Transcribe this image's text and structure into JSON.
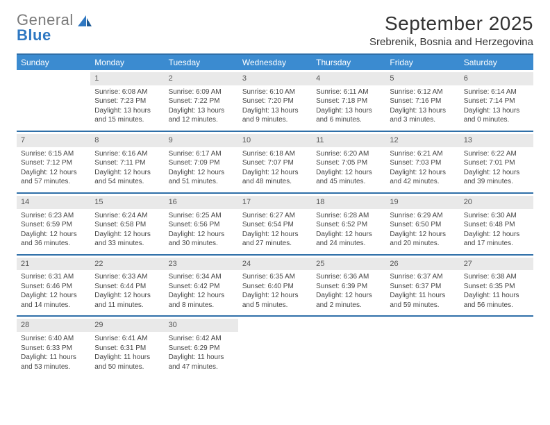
{
  "brand": {
    "word1": "General",
    "word2": "Blue"
  },
  "header": {
    "month": "September 2025",
    "location": "Srebrenik, Bosnia and Herzegovina"
  },
  "weekdays": [
    "Sunday",
    "Monday",
    "Tuesday",
    "Wednesday",
    "Thursday",
    "Friday",
    "Saturday"
  ],
  "colors": {
    "header_bg": "#3b8bd0",
    "header_text": "#ffffff",
    "rule": "#2f6fa8",
    "daynum_bg": "#e9e9e9",
    "body_text": "#444444",
    "logo_gray": "#7a7a7a",
    "logo_blue": "#2f78c2"
  },
  "weeks": [
    [
      null,
      {
        "n": "1",
        "sr": "Sunrise: 6:08 AM",
        "ss": "Sunset: 7:23 PM",
        "dl": "Daylight: 13 hours and 15 minutes."
      },
      {
        "n": "2",
        "sr": "Sunrise: 6:09 AM",
        "ss": "Sunset: 7:22 PM",
        "dl": "Daylight: 13 hours and 12 minutes."
      },
      {
        "n": "3",
        "sr": "Sunrise: 6:10 AM",
        "ss": "Sunset: 7:20 PM",
        "dl": "Daylight: 13 hours and 9 minutes."
      },
      {
        "n": "4",
        "sr": "Sunrise: 6:11 AM",
        "ss": "Sunset: 7:18 PM",
        "dl": "Daylight: 13 hours and 6 minutes."
      },
      {
        "n": "5",
        "sr": "Sunrise: 6:12 AM",
        "ss": "Sunset: 7:16 PM",
        "dl": "Daylight: 13 hours and 3 minutes."
      },
      {
        "n": "6",
        "sr": "Sunrise: 6:14 AM",
        "ss": "Sunset: 7:14 PM",
        "dl": "Daylight: 13 hours and 0 minutes."
      }
    ],
    [
      {
        "n": "7",
        "sr": "Sunrise: 6:15 AM",
        "ss": "Sunset: 7:12 PM",
        "dl": "Daylight: 12 hours and 57 minutes."
      },
      {
        "n": "8",
        "sr": "Sunrise: 6:16 AM",
        "ss": "Sunset: 7:11 PM",
        "dl": "Daylight: 12 hours and 54 minutes."
      },
      {
        "n": "9",
        "sr": "Sunrise: 6:17 AM",
        "ss": "Sunset: 7:09 PM",
        "dl": "Daylight: 12 hours and 51 minutes."
      },
      {
        "n": "10",
        "sr": "Sunrise: 6:18 AM",
        "ss": "Sunset: 7:07 PM",
        "dl": "Daylight: 12 hours and 48 minutes."
      },
      {
        "n": "11",
        "sr": "Sunrise: 6:20 AM",
        "ss": "Sunset: 7:05 PM",
        "dl": "Daylight: 12 hours and 45 minutes."
      },
      {
        "n": "12",
        "sr": "Sunrise: 6:21 AM",
        "ss": "Sunset: 7:03 PM",
        "dl": "Daylight: 12 hours and 42 minutes."
      },
      {
        "n": "13",
        "sr": "Sunrise: 6:22 AM",
        "ss": "Sunset: 7:01 PM",
        "dl": "Daylight: 12 hours and 39 minutes."
      }
    ],
    [
      {
        "n": "14",
        "sr": "Sunrise: 6:23 AM",
        "ss": "Sunset: 6:59 PM",
        "dl": "Daylight: 12 hours and 36 minutes."
      },
      {
        "n": "15",
        "sr": "Sunrise: 6:24 AM",
        "ss": "Sunset: 6:58 PM",
        "dl": "Daylight: 12 hours and 33 minutes."
      },
      {
        "n": "16",
        "sr": "Sunrise: 6:25 AM",
        "ss": "Sunset: 6:56 PM",
        "dl": "Daylight: 12 hours and 30 minutes."
      },
      {
        "n": "17",
        "sr": "Sunrise: 6:27 AM",
        "ss": "Sunset: 6:54 PM",
        "dl": "Daylight: 12 hours and 27 minutes."
      },
      {
        "n": "18",
        "sr": "Sunrise: 6:28 AM",
        "ss": "Sunset: 6:52 PM",
        "dl": "Daylight: 12 hours and 24 minutes."
      },
      {
        "n": "19",
        "sr": "Sunrise: 6:29 AM",
        "ss": "Sunset: 6:50 PM",
        "dl": "Daylight: 12 hours and 20 minutes."
      },
      {
        "n": "20",
        "sr": "Sunrise: 6:30 AM",
        "ss": "Sunset: 6:48 PM",
        "dl": "Daylight: 12 hours and 17 minutes."
      }
    ],
    [
      {
        "n": "21",
        "sr": "Sunrise: 6:31 AM",
        "ss": "Sunset: 6:46 PM",
        "dl": "Daylight: 12 hours and 14 minutes."
      },
      {
        "n": "22",
        "sr": "Sunrise: 6:33 AM",
        "ss": "Sunset: 6:44 PM",
        "dl": "Daylight: 12 hours and 11 minutes."
      },
      {
        "n": "23",
        "sr": "Sunrise: 6:34 AM",
        "ss": "Sunset: 6:42 PM",
        "dl": "Daylight: 12 hours and 8 minutes."
      },
      {
        "n": "24",
        "sr": "Sunrise: 6:35 AM",
        "ss": "Sunset: 6:40 PM",
        "dl": "Daylight: 12 hours and 5 minutes."
      },
      {
        "n": "25",
        "sr": "Sunrise: 6:36 AM",
        "ss": "Sunset: 6:39 PM",
        "dl": "Daylight: 12 hours and 2 minutes."
      },
      {
        "n": "26",
        "sr": "Sunrise: 6:37 AM",
        "ss": "Sunset: 6:37 PM",
        "dl": "Daylight: 11 hours and 59 minutes."
      },
      {
        "n": "27",
        "sr": "Sunrise: 6:38 AM",
        "ss": "Sunset: 6:35 PM",
        "dl": "Daylight: 11 hours and 56 minutes."
      }
    ],
    [
      {
        "n": "28",
        "sr": "Sunrise: 6:40 AM",
        "ss": "Sunset: 6:33 PM",
        "dl": "Daylight: 11 hours and 53 minutes."
      },
      {
        "n": "29",
        "sr": "Sunrise: 6:41 AM",
        "ss": "Sunset: 6:31 PM",
        "dl": "Daylight: 11 hours and 50 minutes."
      },
      {
        "n": "30",
        "sr": "Sunrise: 6:42 AM",
        "ss": "Sunset: 6:29 PM",
        "dl": "Daylight: 11 hours and 47 minutes."
      },
      null,
      null,
      null,
      null
    ]
  ]
}
